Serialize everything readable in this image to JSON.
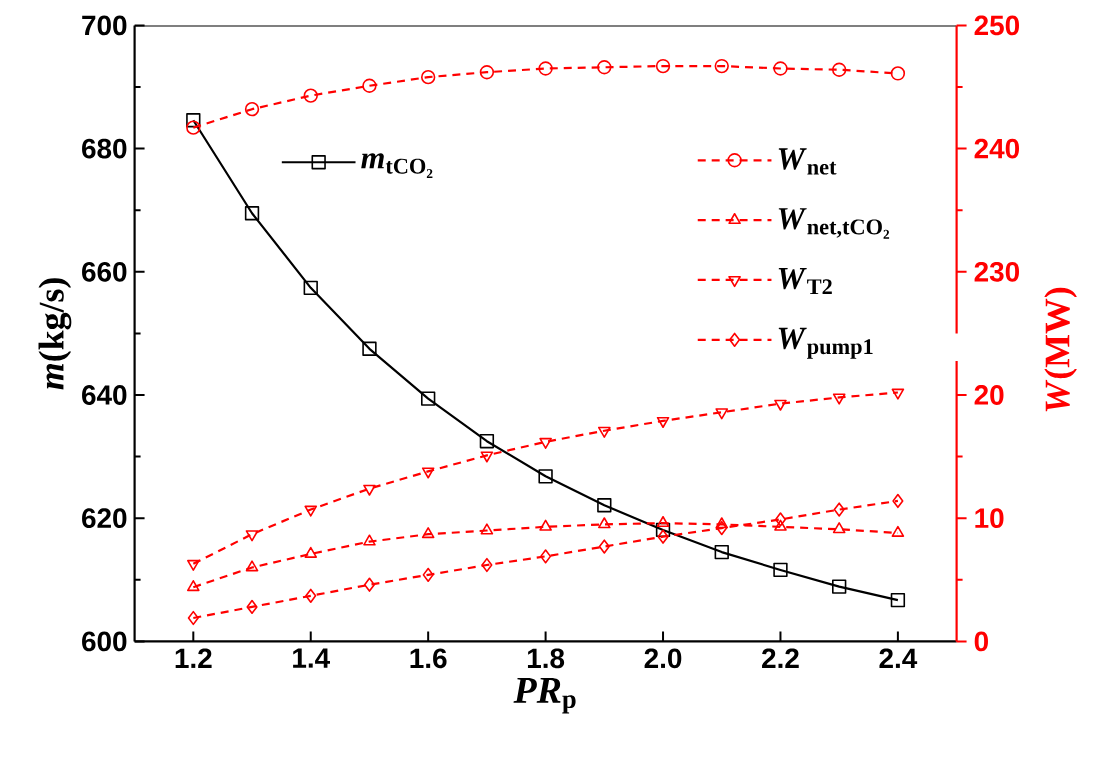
{
  "chart_data": {
    "type": "line",
    "xlabel": "*PR*$_{p}$",
    "ylabel": "*m*(kg/s)",
    "y2label": "*W*(MW)",
    "x": [
      1.2,
      1.3,
      1.4,
      1.5,
      1.6,
      1.7,
      1.8,
      1.9,
      2.0,
      2.1,
      2.2,
      2.3,
      2.4
    ],
    "xlim": [
      1.1,
      2.5
    ],
    "xticks": [
      1.2,
      1.4,
      1.6,
      1.8,
      {
        "value": 2,
        "label": "2.0"
      },
      2.2,
      2.4
    ],
    "ylim": [
      600,
      700
    ],
    "yticks": [
      600,
      620,
      640,
      660,
      680,
      700
    ],
    "y2lim": [
      200,
      250
    ],
    "y2ticks": [
      230,
      240,
      250
    ],
    "y3lim": [
      0,
      50
    ],
    "y3ticks": [
      0,
      10,
      20
    ],
    "legend": "top",
    "series": [
      {
        "name": "*m*$_{tCO₂}$",
        "color": "#000000",
        "marker": "square",
        "line_style": "solid",
        "values": [
          684.6,
          669.5,
          657.4,
          647.5,
          639.4,
          632.5,
          626.8,
          622.1,
          618.1,
          614.5,
          611.6,
          608.9,
          606.7
        ]
      },
      {
        "name": "*W*$_{net}$",
        "color": "#ff0000",
        "marker": "circle",
        "line_style": "dashed",
        "axis": "y2",
        "values": [
          241.7,
          243.2,
          244.3,
          245.1,
          245.8,
          246.2,
          246.5,
          246.6,
          246.7,
          246.7,
          246.5,
          246.4,
          246.1
        ]
      },
      {
        "name": "*W*$_{net,tCO₂}$",
        "color": "#ff0000",
        "marker": "triangle",
        "line_style": "dashed",
        "axis": "y3",
        "values": [
          4.4,
          6.0,
          7.1,
          8.1,
          8.7,
          9.0,
          9.3,
          9.5,
          9.6,
          9.5,
          9.3,
          9.1,
          8.8
        ]
      },
      {
        "name": "*W*$_{T2}$",
        "color": "#ff0000",
        "marker": "triangle down",
        "line_style": "dashed",
        "axis": "y3",
        "values": [
          6.3,
          8.7,
          10.7,
          12.4,
          13.8,
          15.1,
          16.2,
          17.1,
          17.9,
          18.6,
          19.3,
          19.8,
          20.2
        ]
      },
      {
        "name": "*W*$_{pump1}$",
        "color": "#ff0000",
        "marker": "diamond",
        "line_style": "dashed",
        "axis": "y3",
        "values": [
          1.9,
          2.8,
          3.7,
          4.6,
          5.4,
          6.2,
          6.9,
          7.7,
          8.5,
          9.2,
          9.9,
          10.7,
          11.4
        ]
      }
    ]
  }
}
